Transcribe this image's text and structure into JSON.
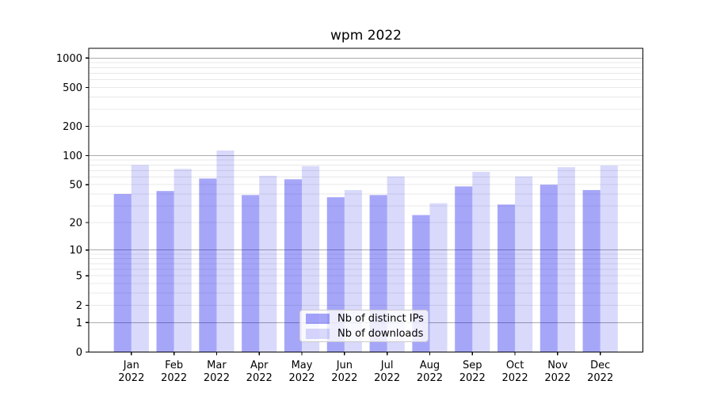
{
  "title": "wpm 2022",
  "legend": {
    "items": [
      {
        "label": "Nb of distinct IPs"
      },
      {
        "label": "Nb of downloads"
      }
    ]
  },
  "colors": {
    "bar_ips": "rgba(0,0,238,0.35)",
    "bar_downloads": "rgba(0,0,238,0.15)",
    "grid_major": "#ababab",
    "grid_minor": "#e8e8e8",
    "axis": "#000000",
    "legend_border": "#cbcbcb",
    "legend_bg": "rgba(255,255,255,0.8)"
  },
  "y_axis": {
    "scale": "log10(1+y)",
    "tick_values": [
      0,
      1,
      2,
      5,
      10,
      20,
      50,
      100,
      200,
      500,
      1000
    ],
    "major_grid_values": [
      1,
      10,
      100,
      1000
    ],
    "minor_grid_values": [
      2,
      3,
      4,
      5,
      6,
      7,
      8,
      9,
      20,
      30,
      40,
      50,
      60,
      70,
      80,
      90,
      200,
      300,
      400,
      500,
      600,
      700,
      800,
      900
    ]
  },
  "x_axis": {
    "months": [
      "Jan",
      "Feb",
      "Mar",
      "Apr",
      "May",
      "Jun",
      "Jul",
      "Aug",
      "Sep",
      "Oct",
      "Nov",
      "Dec"
    ],
    "year_line": "2022"
  },
  "chart_data": {
    "type": "bar",
    "title": "wpm 2022",
    "categories": [
      "Jan 2022",
      "Feb 2022",
      "Mar 2022",
      "Apr 2022",
      "May 2022",
      "Jun 2022",
      "Jul 2022",
      "Aug 2022",
      "Sep 2022",
      "Oct 2022",
      "Nov 2022",
      "Dec 2022"
    ],
    "series": [
      {
        "name": "Nb of distinct IPs",
        "values": [
          40,
          43,
          58,
          39,
          57,
          37,
          39,
          24,
          48,
          31,
          50,
          44
        ]
      },
      {
        "name": "Nb of downloads",
        "values": [
          80,
          73,
          113,
          62,
          78,
          44,
          61,
          32,
          68,
          61,
          76,
          79
        ]
      }
    ],
    "yscale": "log1p",
    "ylim": [
      0,
      1250
    ],
    "grid": true,
    "legend_position": "lower center"
  }
}
